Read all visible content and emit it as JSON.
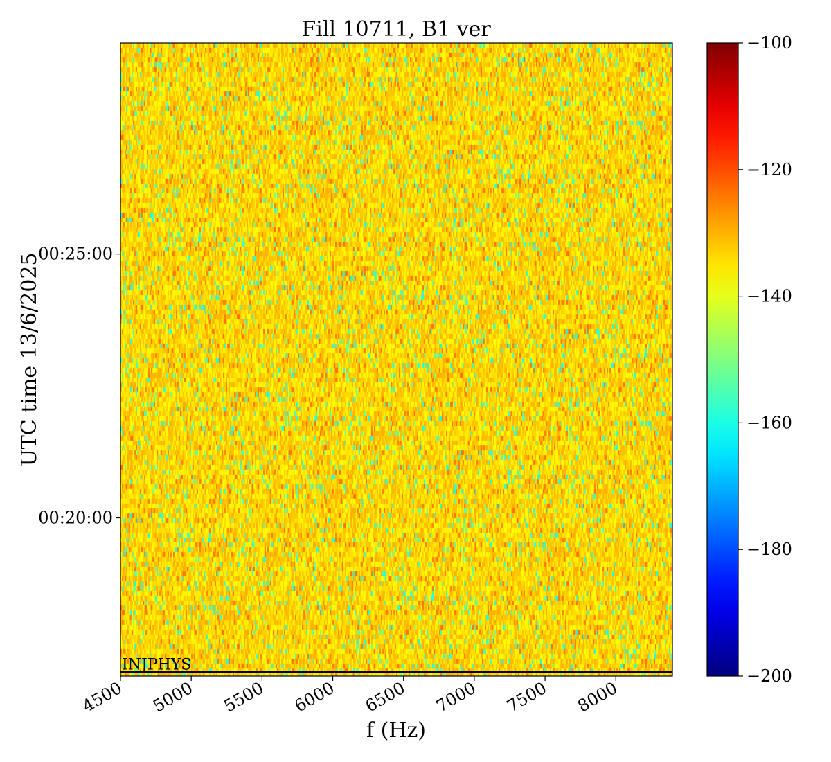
{
  "chart_data": {
    "type": "heatmap",
    "title": "Fill 10711, B1 ver",
    "xlabel": "f (Hz)",
    "ylabel": "UTC time 13/6/2025",
    "xlim": [
      4500,
      8400
    ],
    "x_ticks": [
      "4500",
      "5000",
      "5500",
      "6000",
      "6500",
      "7000",
      "7500",
      "8000"
    ],
    "x_tick_values": [
      4500,
      5000,
      5500,
      6000,
      6500,
      7000,
      7500,
      8000
    ],
    "y_ticks": [
      "00:20:00",
      "00:25:00"
    ],
    "y_tick_values_seconds": [
      1200,
      1500
    ],
    "ylim_seconds": [
      1020,
      1740
    ],
    "colorbar": {
      "vmin": -200,
      "vmax": -100,
      "ticks": [
        "-100",
        "-120",
        "-140",
        "-160",
        "-180",
        "-200"
      ],
      "tick_values": [
        -100,
        -120,
        -140,
        -160,
        -180,
        -200
      ],
      "colormap": "jet"
    },
    "typical_value_range": [
      -145,
      -125
    ],
    "annotation": {
      "text": "INJPHYS",
      "time_seconds": 1025
    },
    "grid": false
  }
}
